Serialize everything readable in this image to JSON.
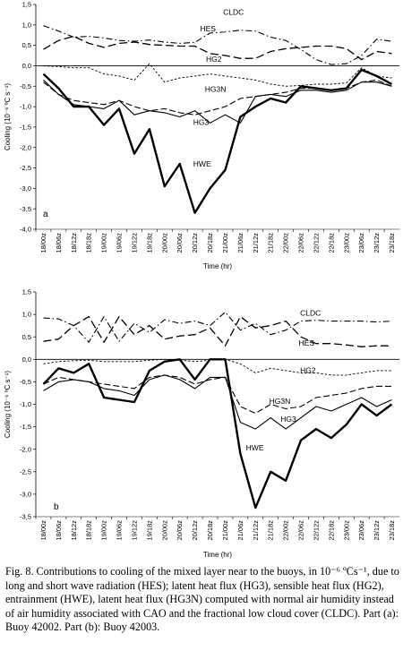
{
  "figure": {
    "caption": "Fig. 8. Contributions to cooling of the mixed layer near to the buoys, in 10⁻⁶ ºCs⁻¹, due to long and short wave radiation (HES); latent heat flux (HG3), sensible heat flux (HG2), entrainment (HWE), latent heat flux (HG3N) computed with normal air humidity instead of air humidity associated with CAO and the fractional low cloud cover (CLDC). Part (a): Buoy 42002. Part (b): Buoy 42003."
  },
  "chart_data": [
    {
      "type": "line",
      "panel_label": "a",
      "xlabel": "Time (hr)",
      "ylabel": "Cooling (10⁻⁶ ºC s⁻¹)",
      "ylim": [
        -4.0,
        1.5
      ],
      "yticks": [
        "1,5",
        "1,0",
        "0,5",
        "0,0",
        "-0,5",
        "-1,0",
        "-1,5",
        "-2,0",
        "-2,5",
        "-3,0",
        "-3,5",
        "-4,0"
      ],
      "categories": [
        "18/00z",
        "18/06z",
        "18/12z",
        "18/18z",
        "19/00z",
        "19/06z",
        "19/12z",
        "19/18z",
        "20/00z",
        "20/06z",
        "20/12z",
        "20/18z",
        "21/00z",
        "21/06z",
        "21/12z",
        "21/18z",
        "22/00z",
        "22/06z",
        "22/12z",
        "22/18z",
        "23/00z",
        "23/06z",
        "23/12z",
        "23/18z"
      ],
      "series": [
        {
          "name": "CLDC",
          "style": "dashdot",
          "values": [
            0.98,
            0.85,
            0.7,
            0.72,
            0.68,
            0.62,
            0.6,
            0.63,
            0.58,
            0.55,
            0.57,
            0.8,
            0.83,
            0.87,
            0.85,
            0.7,
            0.62,
            0.4,
            0.15,
            0.03,
            0.05,
            0.25,
            0.65,
            0.6
          ]
        },
        {
          "name": "HES",
          "style": "longdash",
          "values": [
            0.4,
            0.62,
            0.72,
            0.55,
            0.45,
            0.55,
            0.58,
            0.52,
            0.5,
            0.48,
            0.48,
            0.3,
            0.25,
            0.18,
            0.18,
            0.35,
            0.42,
            0.45,
            0.48,
            0.48,
            0.42,
            0.15,
            0.35,
            0.3
          ]
        },
        {
          "name": "HG2",
          "style": "shortdash",
          "values": [
            0.0,
            -0.02,
            -0.05,
            -0.05,
            -0.2,
            -0.25,
            -0.35,
            0.05,
            -0.4,
            -0.3,
            -0.25,
            -0.2,
            -0.25,
            -0.3,
            -0.35,
            -0.45,
            -0.5,
            -0.48,
            -0.45,
            -0.45,
            -0.42,
            -0.05,
            -0.25,
            -0.3
          ]
        },
        {
          "name": "HG3N",
          "style": "longdash2",
          "values": [
            -0.4,
            -0.7,
            -0.85,
            -0.9,
            -0.95,
            -0.85,
            -1.0,
            -1.1,
            -1.05,
            -1.15,
            -1.2,
            -1.1,
            -1.0,
            -0.8,
            -0.75,
            -0.7,
            -0.65,
            -0.55,
            -0.55,
            -0.6,
            -0.55,
            -0.4,
            -0.35,
            -0.5
          ]
        },
        {
          "name": "HG3",
          "style": "solid",
          "values": [
            -0.35,
            -0.7,
            -0.95,
            -1.0,
            -1.05,
            -0.85,
            -1.2,
            -1.1,
            -1.15,
            -1.25,
            -1.1,
            -1.4,
            -1.2,
            -1.4,
            -0.75,
            -0.7,
            -0.75,
            -0.6,
            -0.6,
            -0.65,
            -0.6,
            -0.4,
            -0.4,
            -0.5
          ]
        },
        {
          "name": "HWE",
          "style": "bold",
          "values": [
            -0.2,
            -0.55,
            -1.0,
            -1.0,
            -1.45,
            -1.05,
            -2.15,
            -1.55,
            -2.95,
            -2.4,
            -3.6,
            -3.0,
            -2.55,
            -1.25,
            -1.0,
            -0.8,
            -0.9,
            -0.5,
            -0.55,
            -0.6,
            -0.55,
            -0.1,
            -0.25,
            -0.45
          ]
        }
      ],
      "annotations": [
        "CLDC",
        "HES",
        "HG2",
        "HG3N",
        "HG3",
        "HWE"
      ]
    },
    {
      "type": "line",
      "panel_label": "b",
      "xlabel": "Time (hr)",
      "ylabel": "Cooling (10⁻⁶ ºC s⁻¹)",
      "ylim": [
        -3.5,
        1.5
      ],
      "yticks": [
        "1,5",
        "1,0",
        "0,5",
        "0,0",
        "-0,5",
        "-1,0",
        "-1,5",
        "-2,0",
        "-2,5",
        "-3,0",
        "-3,5"
      ],
      "categories": [
        "18/00z",
        "18/06z",
        "18/12z",
        "18/18z",
        "19/00z",
        "19/06z",
        "19/12z",
        "19/18z",
        "20/00z",
        "20/06z",
        "20/12z",
        "20/18z",
        "21/00z",
        "21/06z",
        "21/12z",
        "21/18z",
        "22/00z",
        "22/06z",
        "22/12z",
        "22/18z",
        "23/00z",
        "23/06z",
        "23/12z",
        "23/18z"
      ],
      "series": [
        {
          "name": "CLDC",
          "style": "dashdot",
          "values": [
            0.92,
            0.9,
            0.75,
            0.38,
            0.95,
            0.4,
            0.8,
            0.6,
            0.88,
            0.8,
            0.85,
            0.75,
            1.05,
            0.65,
            0.8,
            0.55,
            0.65,
            0.85,
            0.87,
            0.85,
            0.85,
            0.85,
            0.83,
            0.85
          ]
        },
        {
          "name": "HES",
          "style": "longdash",
          "values": [
            0.4,
            0.45,
            0.75,
            0.95,
            0.38,
            0.95,
            0.55,
            0.75,
            0.45,
            0.52,
            0.55,
            0.7,
            0.3,
            0.95,
            0.7,
            0.75,
            0.85,
            0.5,
            0.35,
            0.35,
            0.32,
            0.28,
            0.3,
            0.3
          ]
        },
        {
          "name": "HG2",
          "style": "shortdash",
          "values": [
            -0.1,
            -0.05,
            -0.03,
            -0.02,
            -0.05,
            -0.05,
            -0.05,
            -0.02,
            0.0,
            -0.02,
            -0.05,
            -0.02,
            0.0,
            -0.1,
            -0.3,
            -0.2,
            -0.25,
            -0.3,
            -0.3,
            -0.35,
            -0.35,
            -0.3,
            -0.25,
            -0.25
          ]
        },
        {
          "name": "HG3N",
          "style": "longdash2",
          "values": [
            -0.55,
            -0.4,
            -0.45,
            -0.5,
            -0.55,
            -0.6,
            -0.65,
            -0.4,
            -0.35,
            -0.4,
            -0.55,
            -0.45,
            -0.4,
            -1.05,
            -1.2,
            -1.0,
            -1.1,
            -1.05,
            -0.85,
            -0.8,
            -0.75,
            -0.65,
            -0.6,
            -0.6
          ]
        },
        {
          "name": "HG3",
          "style": "solid",
          "values": [
            -0.7,
            -0.5,
            -0.45,
            -0.5,
            -0.65,
            -0.7,
            -0.8,
            -0.45,
            -0.35,
            -0.45,
            -0.65,
            -0.4,
            -0.4,
            -1.4,
            -1.55,
            -1.3,
            -1.55,
            -1.3,
            -1.05,
            -1.15,
            -1.0,
            -0.85,
            -1.05,
            -0.9
          ]
        },
        {
          "name": "HWE",
          "style": "bold",
          "values": [
            -0.55,
            -0.2,
            -0.3,
            -0.1,
            -0.85,
            -0.9,
            -0.95,
            -0.25,
            -0.05,
            0.0,
            -0.45,
            0.0,
            0.0,
            -2.1,
            -3.3,
            -2.5,
            -2.7,
            -1.8,
            -1.55,
            -1.75,
            -1.45,
            -1.0,
            -1.25,
            -1.0
          ]
        }
      ],
      "annotations": [
        "CLDC",
        "HES",
        "HG2",
        "HG3N",
        "HG3",
        "HWE"
      ]
    }
  ]
}
